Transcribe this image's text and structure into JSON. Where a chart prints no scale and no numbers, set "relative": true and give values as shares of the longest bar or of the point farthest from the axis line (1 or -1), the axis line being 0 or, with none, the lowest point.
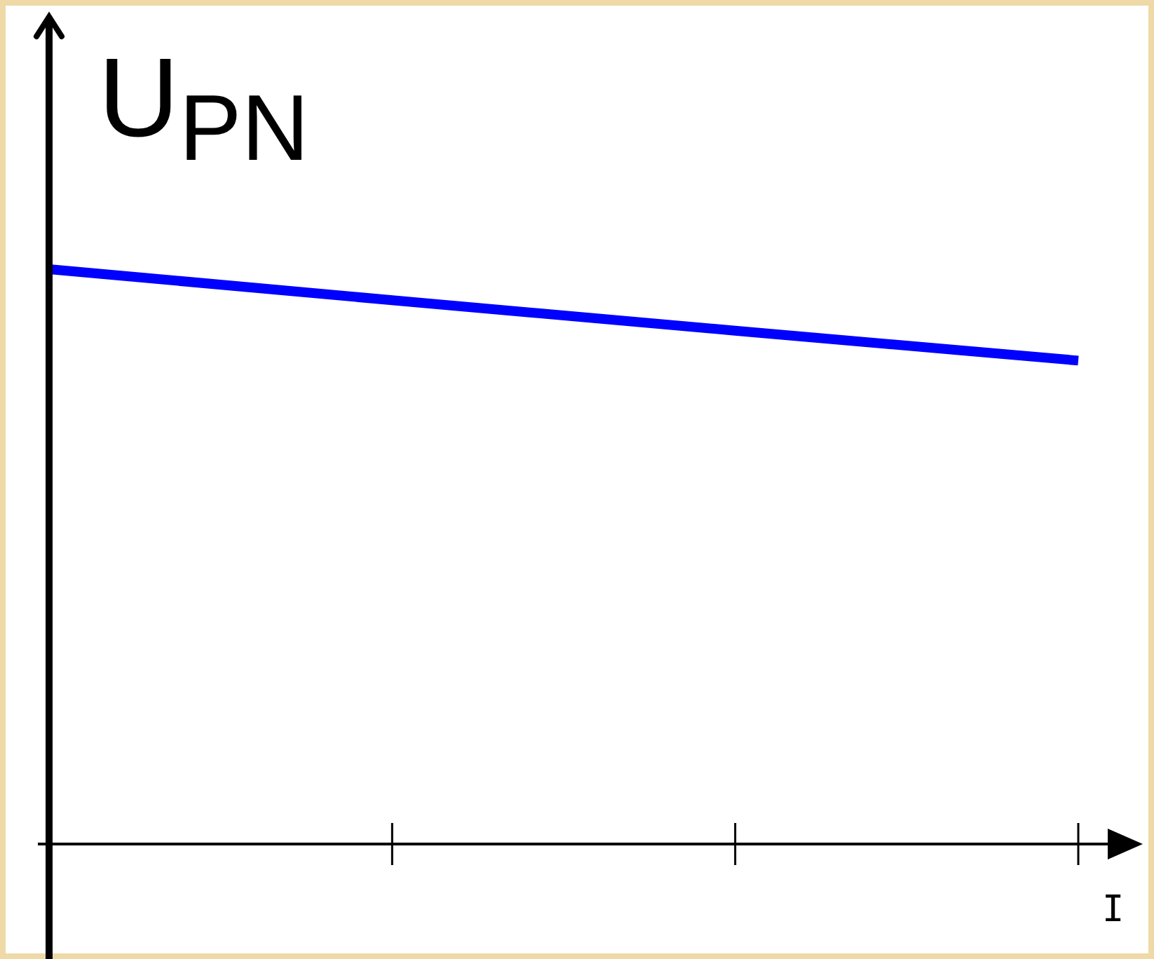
{
  "chart_data": {
    "type": "line",
    "relative": true,
    "xlabel": "I",
    "ylabel": "U$_{PN}$",
    "categories": [
      null,
      null,
      null,
      null
    ],
    "series": [
      {
        "color": "#0000ff",
        "values": [
          1,
          0.946,
          0.893,
          0.841
        ]
      }
    ],
    "legend": false,
    "marker": "none",
    "line_style": "solid"
  }
}
